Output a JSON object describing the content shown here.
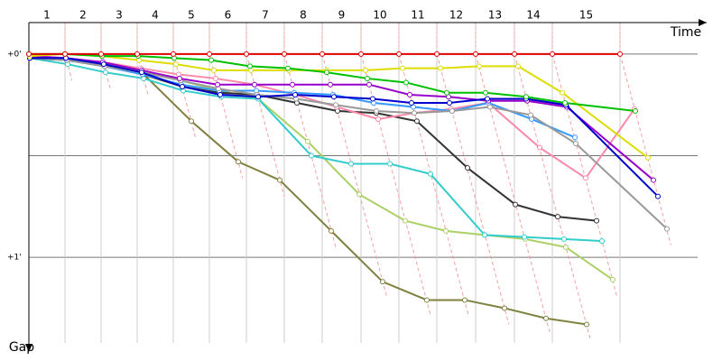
{
  "chart_data": {
    "type": "line",
    "x_label": "Time",
    "y_label": "Gap",
    "laps": [
      "1",
      "2",
      "3",
      "4",
      "5",
      "6",
      "7",
      "8",
      "9",
      "10",
      "11",
      "12",
      "13",
      "14",
      "15"
    ],
    "xlim": [
      0,
      751
    ],
    "ylim": [
      -0.155,
      1.39
    ],
    "yticks": [
      {
        "value": 0,
        "label": "+0'"
      },
      {
        "value": 0.5,
        "label": null
      },
      {
        "value": 1,
        "label": "+1'"
      }
    ],
    "grid": true,
    "series": [
      {
        "color": "#e00000",
        "x": [
          0,
          40,
          80,
          120,
          160,
          200,
          241,
          283,
          325,
          368,
          410,
          452,
          495,
          538,
          580,
          655
        ],
        "values": [
          0,
          0,
          0,
          0,
          0,
          0,
          0,
          0,
          0,
          0,
          0,
          0,
          0,
          0,
          0,
          0
        ]
      },
      {
        "color": "#00c000",
        "x": [
          0,
          40,
          81,
          121,
          161,
          202,
          245,
          287,
          330,
          375,
          418,
          463,
          506,
          551,
          594,
          672
        ],
        "values": [
          0,
          0,
          0.01,
          0.01,
          0.02,
          0.03,
          0.06,
          0.07,
          0.09,
          0.12,
          0.14,
          0.19,
          0.19,
          0.21,
          0.24,
          0.28
        ]
      },
      {
        "color": "#dddd00",
        "x": [
          1,
          40,
          81,
          122,
          163,
          205,
          246,
          288,
          330,
          373,
          414,
          456,
          499,
          542,
          591,
          686
        ],
        "values": [
          0.01,
          0,
          0.01,
          0.03,
          0.05,
          0.08,
          0.08,
          0.08,
          0.08,
          0.08,
          0.07,
          0.07,
          0.06,
          0.06,
          0.19,
          0.51
        ]
      },
      {
        "color": "#0000cc",
        "x": [
          1,
          41,
          83,
          125,
          170,
          212,
          254,
          295,
          338,
          381,
          424,
          466,
          508,
          551,
          595,
          697
        ],
        "values": [
          0.02,
          0.02,
          0.05,
          0.09,
          0.16,
          0.2,
          0.21,
          0.2,
          0.21,
          0.22,
          0.24,
          0.24,
          0.22,
          0.22,
          0.25,
          0.7
        ]
      },
      {
        "color": "#9900cc",
        "x": [
          1,
          41,
          82,
          125,
          167,
          209,
          250,
          292,
          334,
          377,
          422,
          465,
          509,
          552,
          596,
          692
        ],
        "values": [
          0.01,
          0.02,
          0.04,
          0.08,
          0.12,
          0.15,
          0.15,
          0.15,
          0.15,
          0.15,
          0.2,
          0.21,
          0.23,
          0.23,
          0.26,
          0.62
        ]
      },
      {
        "color": "#999999",
        "x": [
          1,
          42,
          84,
          125,
          168,
          210,
          253,
          296,
          340,
          385,
          427,
          469,
          511,
          556,
          606,
          707
        ],
        "values": [
          0.02,
          0.03,
          0.06,
          0.09,
          0.13,
          0.17,
          0.2,
          0.22,
          0.25,
          0.28,
          0.29,
          0.28,
          0.26,
          0.3,
          0.44,
          0.86
        ]
      },
      {
        "color": "#3399ff",
        "x": [
          1,
          42,
          84,
          126,
          169,
          211,
          252,
          294,
          337,
          382,
          426,
          469,
          509,
          557,
          605
        ],
        "values": [
          0.01,
          0.03,
          0.06,
          0.1,
          0.15,
          0.18,
          0.18,
          0.19,
          0.2,
          0.24,
          0.26,
          0.28,
          0.24,
          0.32,
          0.41
        ]
      },
      {
        "color": "#ff88aa",
        "x": [
          1,
          41,
          82,
          124,
          166,
          207,
          250,
          295,
          341,
          387,
          427,
          468,
          509,
          566,
          617,
          671
        ],
        "values": [
          0.01,
          0.02,
          0.04,
          0.07,
          0.1,
          0.12,
          0.15,
          0.2,
          0.26,
          0.32,
          0.29,
          0.27,
          0.24,
          0.46,
          0.61,
          0.27
        ]
      },
      {
        "color": "#333333",
        "x": [
          1,
          42,
          84,
          126,
          170,
          211,
          253,
          297,
          342,
          385,
          430,
          486,
          539,
          586,
          629
        ],
        "values": [
          0.02,
          0.03,
          0.06,
          0.1,
          0.16,
          0.19,
          0.2,
          0.24,
          0.28,
          0.29,
          0.33,
          0.56,
          0.74,
          0.8,
          0.82
        ]
      },
      {
        "color": "#33cccc",
        "x": [
          1,
          43,
          85,
          127,
          171,
          213,
          254,
          313,
          357,
          400,
          445,
          505,
          549,
          593,
          635
        ],
        "values": [
          0.02,
          0.05,
          0.09,
          0.12,
          0.18,
          0.21,
          0.22,
          0.5,
          0.54,
          0.54,
          0.59,
          0.89,
          0.9,
          0.91,
          0.92
        ]
      },
      {
        "color": "#aad066",
        "x": [
          1,
          41,
          83,
          125,
          168,
          211,
          254,
          309,
          366,
          417,
          462,
          505,
          550,
          595,
          647
        ],
        "values": [
          0.01,
          0.02,
          0.05,
          0.08,
          0.13,
          0.18,
          0.22,
          0.43,
          0.69,
          0.82,
          0.87,
          0.89,
          0.91,
          0.95,
          1.11
        ]
      },
      {
        "color": "#808040",
        "x": [
          1,
          42,
          84,
          125,
          180,
          232,
          278,
          335,
          392,
          441,
          483,
          527,
          573,
          618
        ],
        "values": [
          0.02,
          0.03,
          0.06,
          0.09,
          0.33,
          0.53,
          0.62,
          0.87,
          1.12,
          1.21,
          1.21,
          1.25,
          1.3,
          1.33
        ]
      }
    ]
  }
}
